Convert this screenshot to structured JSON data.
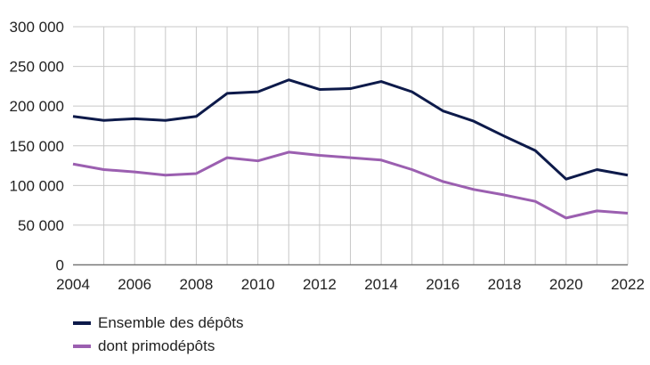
{
  "chart_data": {
    "type": "line",
    "title": "",
    "xlabel": "",
    "ylabel": "",
    "x": [
      2004,
      2005,
      2006,
      2007,
      2008,
      2009,
      2010,
      2011,
      2012,
      2013,
      2014,
      2015,
      2016,
      2017,
      2018,
      2019,
      2020,
      2021,
      2022
    ],
    "xlim": [
      2004,
      2022
    ],
    "ylim": [
      0,
      300000
    ],
    "x_tick_labels": [
      "2004",
      "2006",
      "2008",
      "2010",
      "2012",
      "2014",
      "2016",
      "2018",
      "2020",
      "2022"
    ],
    "y_tick_labels": [
      "0",
      "50 000",
      "100 000",
      "150 000",
      "200 000",
      "250 000",
      "300 000"
    ],
    "grid": true,
    "legend_position": "bottom-left",
    "series": [
      {
        "name": "Ensemble des dépôts",
        "color": "#0d1a4a",
        "values": [
          187000,
          182000,
          184000,
          182000,
          187000,
          216000,
          218000,
          233000,
          221000,
          222000,
          231000,
          218000,
          194000,
          181000,
          162000,
          144000,
          108000,
          120000,
          113000
        ]
      },
      {
        "name": "dont primodépôts",
        "color": "#9b5fb0",
        "values": [
          127000,
          120000,
          117000,
          113000,
          115000,
          135000,
          131000,
          142000,
          138000,
          135000,
          132000,
          120000,
          105000,
          95000,
          88000,
          80000,
          59000,
          68000,
          65000
        ]
      }
    ]
  }
}
